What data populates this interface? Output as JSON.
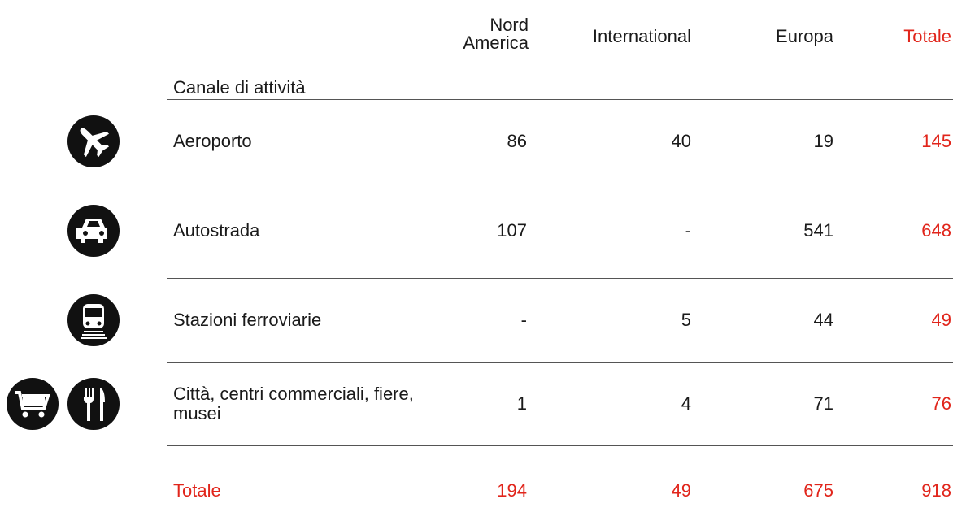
{
  "header": {
    "channel": "Canale di attività",
    "columns": [
      "Nord America",
      "International",
      "Europa",
      "Totale"
    ]
  },
  "rows": [
    {
      "label": "Aeroporto",
      "values": [
        86,
        40,
        19,
        145
      ]
    },
    {
      "label": "Autostrada",
      "values": [
        107,
        "-",
        541,
        648
      ]
    },
    {
      "label": "Stazioni ferroviarie",
      "values": [
        "-",
        5,
        44,
        49
      ]
    },
    {
      "label": "Città, centri commerciali, fiere, musei",
      "values": [
        1,
        4,
        71,
        76
      ]
    }
  ],
  "total": {
    "label": "Totale",
    "values": [
      194,
      49,
      675,
      918
    ]
  }
}
